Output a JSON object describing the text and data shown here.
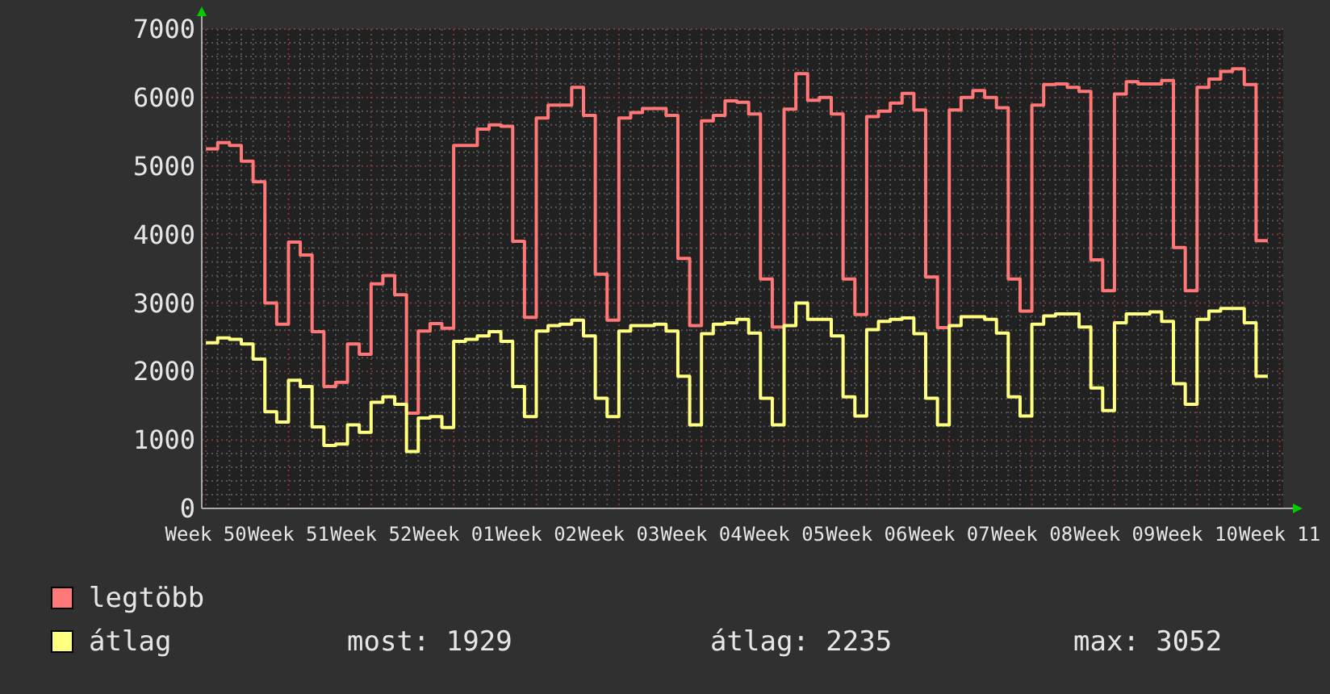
{
  "chart_data": {
    "type": "step",
    "categories": [
      "Week 50",
      null,
      null,
      null,
      null,
      null,
      null,
      "Week 51",
      null,
      null,
      null,
      null,
      null,
      null,
      "Week 52",
      null,
      null,
      null,
      null,
      null,
      null,
      "Week 01",
      null,
      null,
      null,
      null,
      null,
      null,
      "Week 02",
      null,
      null,
      null,
      null,
      null,
      null,
      "Week 03",
      null,
      null,
      null,
      null,
      null,
      null,
      "Week 04",
      null,
      null,
      null,
      null,
      null,
      null,
      "Week 05",
      null,
      null,
      null,
      null,
      null,
      null,
      "Week 06",
      null,
      null,
      null,
      null,
      null,
      null,
      "Week 07",
      null,
      null,
      null,
      null,
      null,
      null,
      "Week 08",
      null,
      null,
      null,
      null,
      null,
      null,
      "Week 09",
      null,
      null,
      null,
      null,
      null,
      null,
      "Week 10",
      null,
      null,
      null,
      null,
      null,
      null,
      "Week 11"
    ],
    "series": [
      {
        "name": "legtöbb",
        "color": "#ff7777",
        "values": [
          5250,
          5340,
          5300,
          5070,
          4770,
          3000,
          2690,
          3890,
          3700,
          2580,
          1780,
          1840,
          2400,
          2250,
          3280,
          3400,
          3120,
          1390,
          2590,
          2700,
          2630,
          5300,
          5300,
          5540,
          5600,
          5580,
          3900,
          2790,
          5700,
          5890,
          5890,
          6150,
          5740,
          3420,
          2750,
          5700,
          5780,
          5840,
          5840,
          5740,
          3650,
          2670,
          5660,
          5740,
          5950,
          5930,
          5760,
          3350,
          2650,
          5830,
          6350,
          5960,
          6000,
          5760,
          3350,
          2830,
          5720,
          5800,
          5920,
          6060,
          5820,
          3380,
          2640,
          5820,
          6000,
          6100,
          6000,
          5850,
          3350,
          2880,
          5890,
          6190,
          6200,
          6150,
          6090,
          3630,
          3180,
          6050,
          6230,
          6200,
          6200,
          6250,
          3810,
          3180,
          6150,
          6270,
          6380,
          6420,
          6190,
          3910,
          3910,
          null
        ]
      },
      {
        "name": "átlag",
        "color": "#ffff80",
        "values": [
          2420,
          2490,
          2470,
          2400,
          2180,
          1410,
          1260,
          1870,
          1780,
          1190,
          920,
          940,
          1220,
          1110,
          1550,
          1630,
          1520,
          830,
          1320,
          1340,
          1180,
          2440,
          2470,
          2520,
          2580,
          2440,
          1780,
          1340,
          2590,
          2670,
          2690,
          2750,
          2520,
          1610,
          1340,
          2590,
          2670,
          2670,
          2690,
          2590,
          1930,
          1220,
          2550,
          2690,
          2710,
          2760,
          2560,
          1610,
          1220,
          2670,
          3000,
          2760,
          2760,
          2520,
          1630,
          1350,
          2610,
          2730,
          2760,
          2780,
          2550,
          1610,
          1220,
          2670,
          2800,
          2800,
          2760,
          2560,
          1630,
          1350,
          2690,
          2810,
          2840,
          2840,
          2650,
          1760,
          1430,
          2710,
          2840,
          2840,
          2870,
          2730,
          1820,
          1520,
          2760,
          2880,
          2920,
          2920,
          2710,
          1930,
          1930,
          null
        ]
      }
    ],
    "ylim": [
      0,
      7000
    ],
    "yticks": [
      0,
      1000,
      2000,
      3000,
      4000,
      5000,
      6000,
      7000
    ],
    "grid": true,
    "legend": "bottom left",
    "annotations": [
      "most: 1929",
      "átlag: 2235",
      "max: 3052"
    ]
  }
}
